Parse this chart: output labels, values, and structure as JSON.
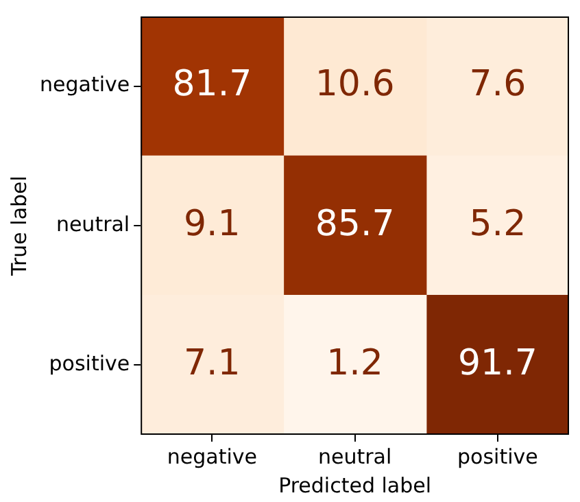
{
  "chart_data": {
    "type": "heatmap",
    "xlabel": "Predicted label",
    "ylabel": "True label",
    "categories": [
      "negative",
      "neutral",
      "positive"
    ],
    "y_categories": [
      "negative",
      "neutral",
      "positive"
    ],
    "cells": [
      [
        81.7,
        10.6,
        7.6
      ],
      [
        9.1,
        85.7,
        5.2
      ],
      [
        7.1,
        1.2,
        91.7
      ]
    ],
    "data_labels": true
  }
}
